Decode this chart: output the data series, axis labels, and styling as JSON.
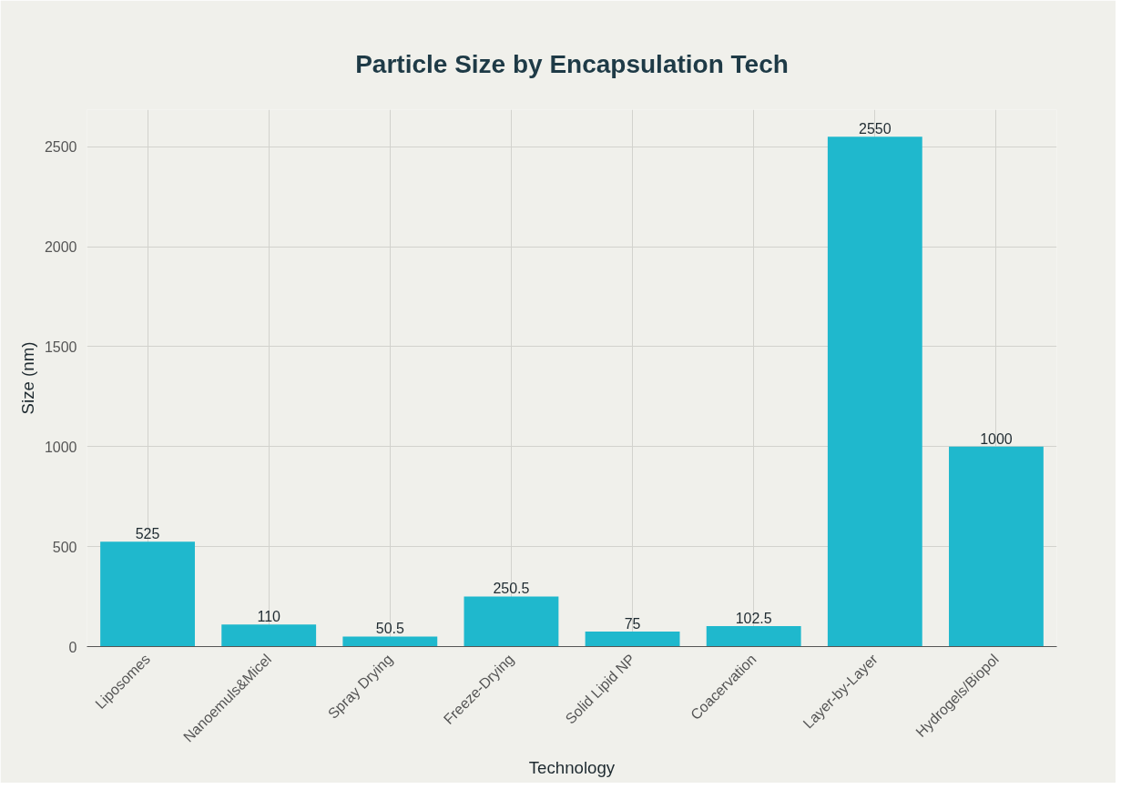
{
  "chart_data": {
    "type": "bar",
    "title": "Particle Size by Encapsulation Tech",
    "xlabel": "Technology",
    "ylabel": "Size (nm)",
    "categories": [
      "Liposomes",
      "Nanoemuls&Micel",
      "Spray Drying",
      "Freeze-Drying",
      "Solid Lipid NP",
      "Coacervation",
      "Layer-by-Layer",
      "Hydrogels/Biopol"
    ],
    "values": [
      525,
      110,
      50.5,
      250.5,
      75,
      102.5,
      2550,
      1000
    ],
    "color": "#1fb8cd",
    "ylim": [
      0,
      2685
    ],
    "yticks": [
      0,
      500,
      1000,
      1500,
      2000,
      2500
    ],
    "grid": true,
    "data_labels": true
  }
}
